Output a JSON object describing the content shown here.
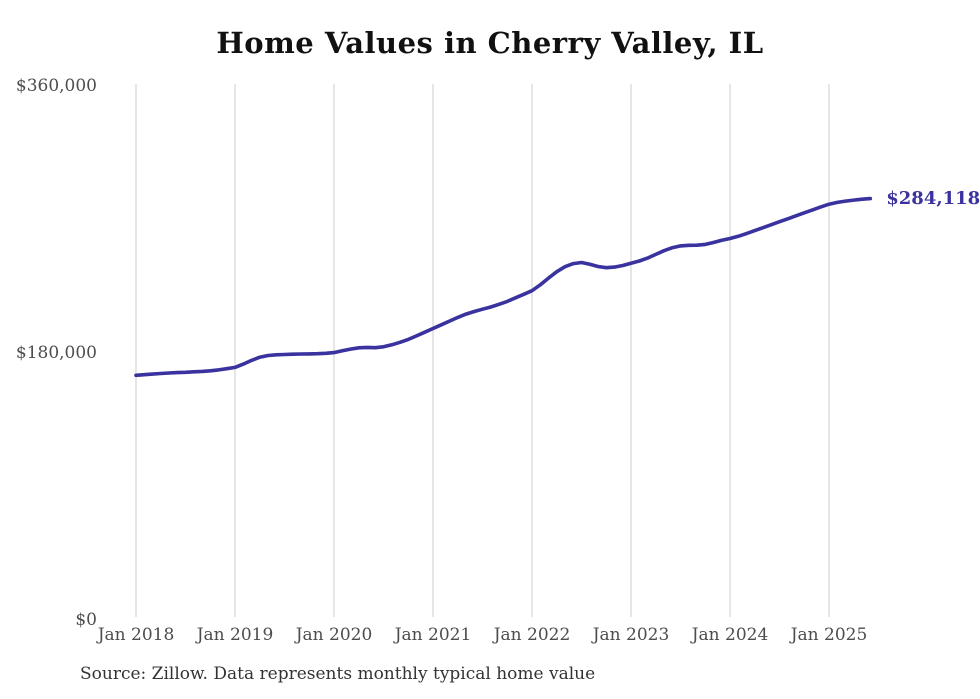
{
  "title": "Home Values in Cherry Valley, IL",
  "source_note": "Source: Zillow. Data represents monthly typical home value",
  "colors": {
    "line": "#39329f",
    "end_label": "#39329f",
    "gridline": "#cccccc",
    "axis_label": "#4d4d4d",
    "title": "#111111",
    "source": "#333333",
    "background": "#ffffff"
  },
  "chart_data": {
    "type": "line",
    "title": "Home Values in Cherry Valley, IL",
    "xlabel": "",
    "ylabel": "",
    "ylim": [
      0,
      360000
    ],
    "grid": "vertical-only",
    "legend": "none",
    "x_start_month": "Jan 2018",
    "x_end_month": "Jun 2025",
    "x_tick_labels": [
      "Jan 2018",
      "Jan 2019",
      "Jan 2020",
      "Jan 2021",
      "Jan 2022",
      "Jan 2023",
      "Jan 2024",
      "Jan 2025"
    ],
    "y_ticks": [
      {
        "label": "$0",
        "value": 0
      },
      {
        "label": "$180,000",
        "value": 180000
      },
      {
        "label": "$360,000",
        "value": 360000
      }
    ],
    "end_value": 284118,
    "end_value_label": "$284,118",
    "series": [
      {
        "name": "Monthly typical home value",
        "monthly_values": [
          165000,
          165400,
          165800,
          166200,
          166500,
          166800,
          167000,
          167300,
          167600,
          168000,
          168600,
          169400,
          170300,
          172500,
          175000,
          177200,
          178300,
          178800,
          179000,
          179200,
          179300,
          179400,
          179500,
          179800,
          180300,
          181500,
          182600,
          183500,
          183800,
          183600,
          184200,
          185500,
          187200,
          189200,
          191500,
          194000,
          196500,
          199000,
          201500,
          204000,
          206200,
          208000,
          209500,
          211000,
          212800,
          214800,
          217200,
          219600,
          222000,
          226000,
          230500,
          234800,
          238200,
          240300,
          241000,
          239800,
          238300,
          237500,
          237900,
          239000,
          240500,
          242000,
          244000,
          246500,
          249000,
          251000,
          252200,
          252600,
          252700,
          253200,
          254500,
          256000,
          257200,
          258700,
          260500,
          262500,
          264500,
          266500,
          268500,
          270500,
          272500,
          274500,
          276500,
          278500,
          280300,
          281500,
          282400,
          283100,
          283700,
          284118
        ]
      }
    ]
  }
}
